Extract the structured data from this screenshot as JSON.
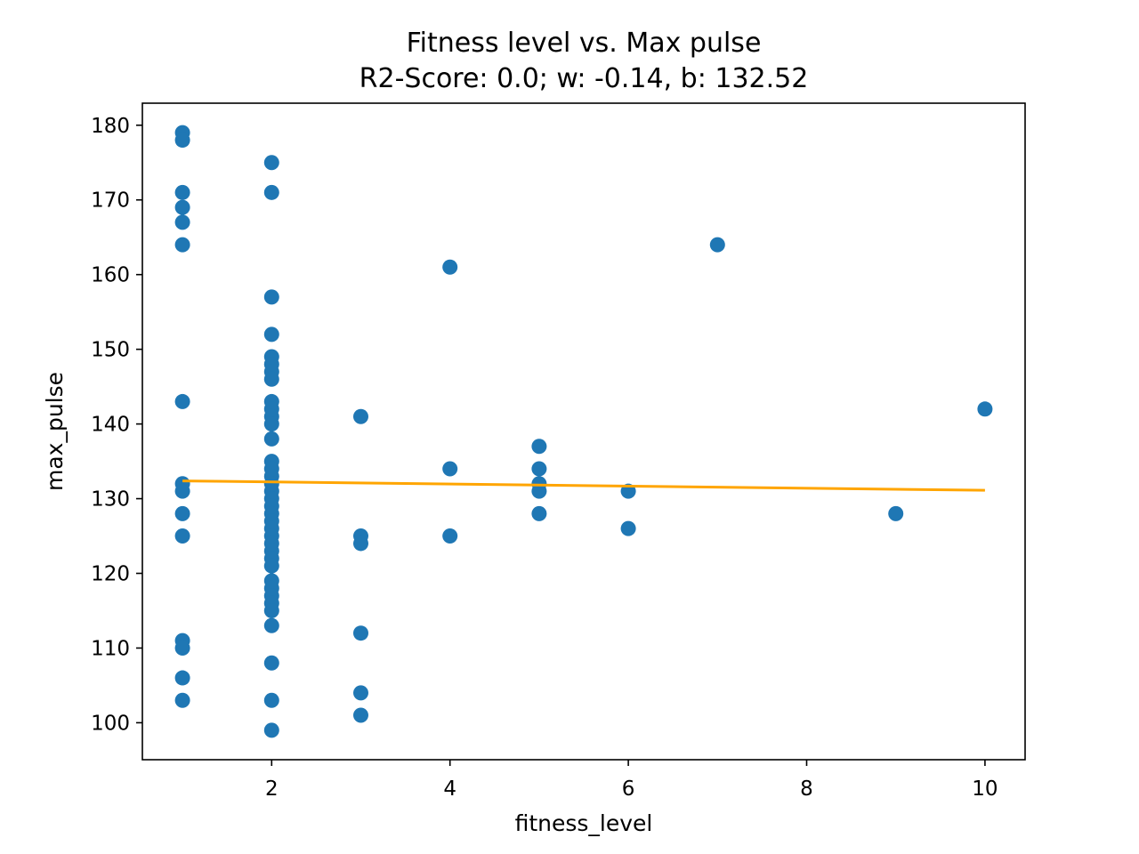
{
  "chart_data": {
    "type": "scatter",
    "title": "Fitness level vs. Max pulse",
    "subtitle": "R2-Score: 0.0; w: -0.14, b: 132.52",
    "xlabel": "fitness_level",
    "ylabel": "max_pulse",
    "xlim": [
      0.55,
      10.45
    ],
    "ylim": [
      95.05,
      182.95
    ],
    "x_ticks": [
      2,
      4,
      6,
      8,
      10
    ],
    "y_ticks": [
      100,
      110,
      120,
      130,
      140,
      150,
      160,
      170,
      180
    ],
    "grid": false,
    "legend": "none",
    "series": [
      {
        "kind": "scatter",
        "color": "#1f77b4",
        "points": [
          [
            1,
            179
          ],
          [
            1,
            178
          ],
          [
            1,
            171
          ],
          [
            1,
            169
          ],
          [
            1,
            167
          ],
          [
            1,
            164
          ],
          [
            1,
            143
          ],
          [
            1,
            132
          ],
          [
            1,
            131
          ],
          [
            1,
            128
          ],
          [
            1,
            125
          ],
          [
            1,
            111
          ],
          [
            1,
            110
          ],
          [
            1,
            106
          ],
          [
            1,
            103
          ],
          [
            2,
            175
          ],
          [
            2,
            171
          ],
          [
            2,
            157
          ],
          [
            2,
            152
          ],
          [
            2,
            149
          ],
          [
            2,
            148
          ],
          [
            2,
            147
          ],
          [
            2,
            146
          ],
          [
            2,
            143
          ],
          [
            2,
            142
          ],
          [
            2,
            141
          ],
          [
            2,
            140
          ],
          [
            2,
            138
          ],
          [
            2,
            135
          ],
          [
            2,
            134
          ],
          [
            2,
            133
          ],
          [
            2,
            132
          ],
          [
            2,
            131
          ],
          [
            2,
            130
          ],
          [
            2,
            129
          ],
          [
            2,
            128
          ],
          [
            2,
            127
          ],
          [
            2,
            126
          ],
          [
            2,
            125
          ],
          [
            2,
            124
          ],
          [
            2,
            123
          ],
          [
            2,
            122
          ],
          [
            2,
            121
          ],
          [
            2,
            119
          ],
          [
            2,
            118
          ],
          [
            2,
            117
          ],
          [
            2,
            116
          ],
          [
            2,
            115
          ],
          [
            2,
            113
          ],
          [
            2,
            108
          ],
          [
            2,
            103
          ],
          [
            2,
            99
          ],
          [
            3,
            141
          ],
          [
            3,
            125
          ],
          [
            3,
            124
          ],
          [
            3,
            112
          ],
          [
            3,
            104
          ],
          [
            3,
            101
          ],
          [
            4,
            161
          ],
          [
            4,
            134
          ],
          [
            4,
            125
          ],
          [
            5,
            137
          ],
          [
            5,
            134
          ],
          [
            5,
            132
          ],
          [
            5,
            131
          ],
          [
            5,
            128
          ],
          [
            6,
            131
          ],
          [
            6,
            126
          ],
          [
            7,
            164
          ],
          [
            9,
            128
          ],
          [
            10,
            142
          ]
        ]
      },
      {
        "kind": "line",
        "color": "#ffa500",
        "x": [
          1,
          10
        ],
        "y": [
          132.38,
          131.12
        ]
      }
    ]
  }
}
